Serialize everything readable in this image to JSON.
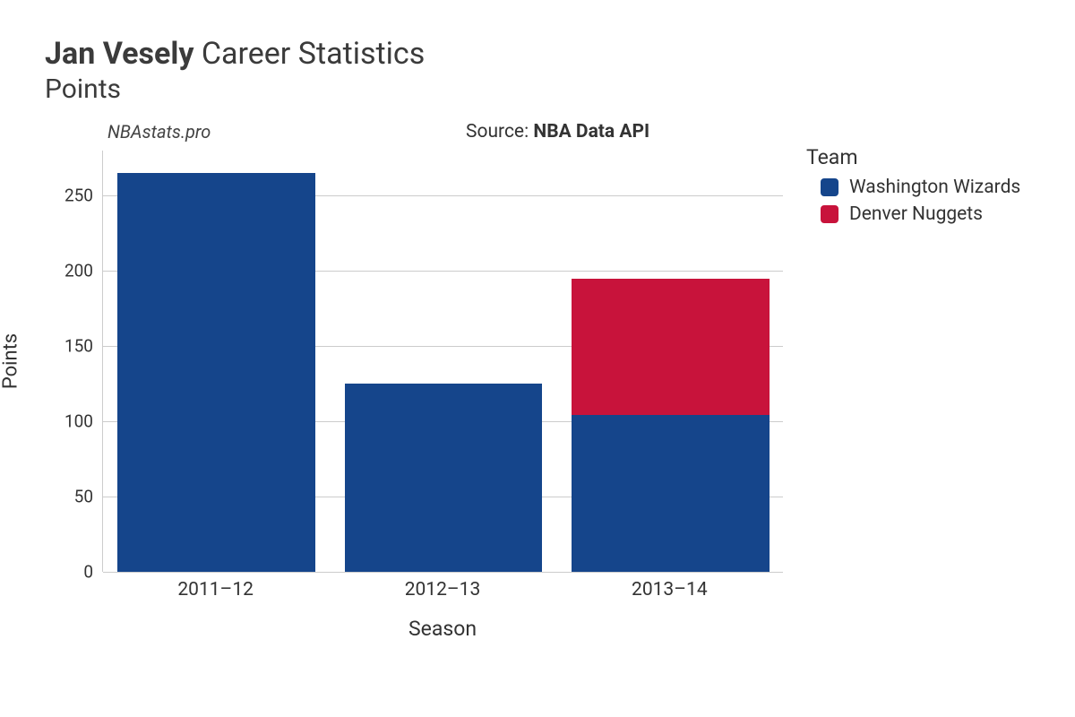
{
  "title": {
    "bold": "Jan Vesely",
    "rest": " Career Statistics"
  },
  "subtitle": "Points",
  "watermark": "NBAstats.pro",
  "source_prefix": "Source: ",
  "source_name": "NBA Data API",
  "chart": {
    "type": "stacked-bar",
    "background_color": "#ffffff",
    "grid_color": "#cccccc",
    "axis_color": "#cccccc",
    "text_color": "#333333",
    "title_fontsize": 34,
    "subtitle_fontsize": 30,
    "axis_label_fontsize": 22,
    "tick_fontsize": 19,
    "x_axis": {
      "title": "Season",
      "categories": [
        "2011–12",
        "2012–13",
        "2013–14"
      ]
    },
    "y_axis": {
      "title": "Points",
      "min": 0,
      "max": 280,
      "ticks": [
        0,
        50,
        100,
        150,
        200,
        250
      ]
    },
    "bar_width_ratio": 0.87,
    "series": [
      {
        "name": "Washington Wizards",
        "color": "#15458b"
      },
      {
        "name": "Denver Nuggets",
        "color": "#c8133b"
      }
    ],
    "data": {
      "2011–12": {
        "Washington Wizards": 265,
        "Denver Nuggets": 0
      },
      "2012–13": {
        "Washington Wizards": 125,
        "Denver Nuggets": 0
      },
      "2013–14": {
        "Washington Wizards": 104,
        "Denver Nuggets": 91
      }
    },
    "legend": {
      "title": "Team",
      "title_fontsize": 23,
      "item_fontsize": 21
    }
  }
}
